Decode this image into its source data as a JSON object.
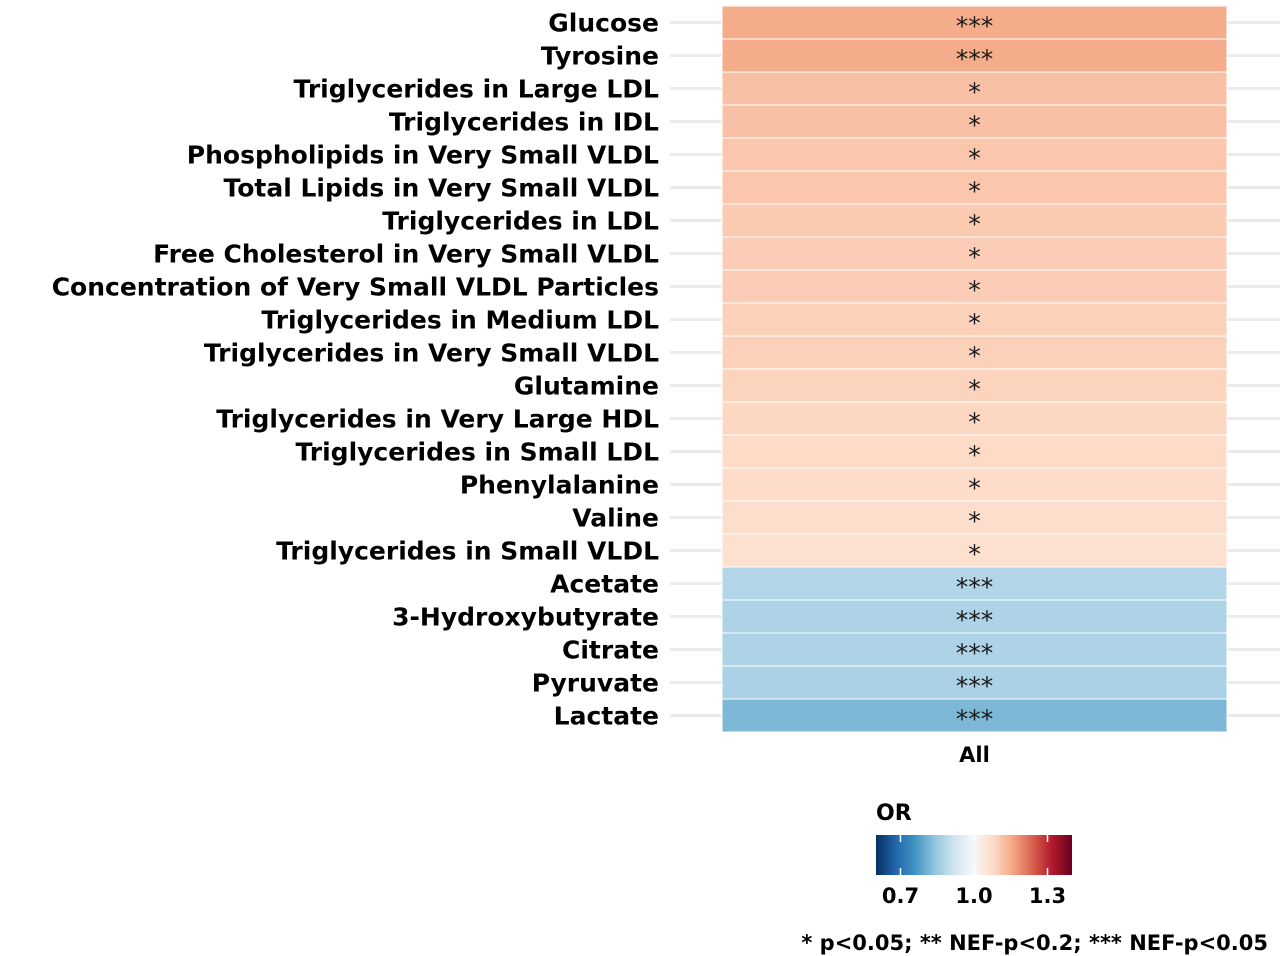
{
  "chart_data": {
    "type": "heatmap",
    "x_categories": [
      "All"
    ],
    "rows": [
      {
        "label": "Glucose",
        "or": 1.15,
        "sig": "***"
      },
      {
        "label": "Tyrosine",
        "or": 1.15,
        "sig": "***"
      },
      {
        "label": "Triglycerides in Large LDL",
        "or": 1.12,
        "sig": "*"
      },
      {
        "label": "Triglycerides in IDL",
        "or": 1.12,
        "sig": "*"
      },
      {
        "label": "Phospholipids in Very Small VLDL",
        "or": 1.11,
        "sig": "*"
      },
      {
        "label": "Total Lipids in Very Small VLDL",
        "or": 1.11,
        "sig": "*"
      },
      {
        "label": "Triglycerides in LDL",
        "or": 1.105,
        "sig": "*"
      },
      {
        "label": "Free Cholesterol in Very Small VLDL",
        "or": 1.1,
        "sig": "*"
      },
      {
        "label": "Concentration of Very Small VLDL Particles",
        "or": 1.1,
        "sig": "*"
      },
      {
        "label": "Triglycerides in Medium LDL",
        "or": 1.095,
        "sig": "*"
      },
      {
        "label": "Triglycerides in Very Small VLDL",
        "or": 1.095,
        "sig": "*"
      },
      {
        "label": "Glutamine",
        "or": 1.09,
        "sig": "*"
      },
      {
        "label": "Triglycerides in Very Large HDL",
        "or": 1.085,
        "sig": "*"
      },
      {
        "label": "Triglycerides in Small LDL",
        "or": 1.08,
        "sig": "*"
      },
      {
        "label": "Phenylalanine",
        "or": 1.075,
        "sig": "*"
      },
      {
        "label": "Valine",
        "or": 1.07,
        "sig": "*"
      },
      {
        "label": "Triglycerides in Small VLDL",
        "or": 1.065,
        "sig": "*"
      },
      {
        "label": "Acetate",
        "or": 0.88,
        "sig": "***"
      },
      {
        "label": "3-Hydroxybutyrate",
        "or": 0.875,
        "sig": "***"
      },
      {
        "label": "Citrate",
        "or": 0.875,
        "sig": "***"
      },
      {
        "label": "Pyruvate",
        "or": 0.87,
        "sig": "***"
      },
      {
        "label": "Lactate",
        "or": 0.82,
        "sig": "***"
      }
    ],
    "legend": {
      "title": "OR",
      "min": 0.6,
      "max": 1.4,
      "ticks": [
        0.7,
        1.0,
        1.3
      ],
      "tick_labels": [
        "0.7",
        "1.0",
        "1.3"
      ],
      "colors": [
        "#053061",
        "#2166ac",
        "#4393c3",
        "#92c5de",
        "#d1e5f0",
        "#f7f7f7",
        "#fddbc7",
        "#f4a582",
        "#d6604d",
        "#b2182b",
        "#67001f"
      ],
      "placement": "bottom"
    },
    "footnote": "* p<0.05; ** NEF-p<0.2; *** NEF-p<0.05",
    "grid": true
  }
}
